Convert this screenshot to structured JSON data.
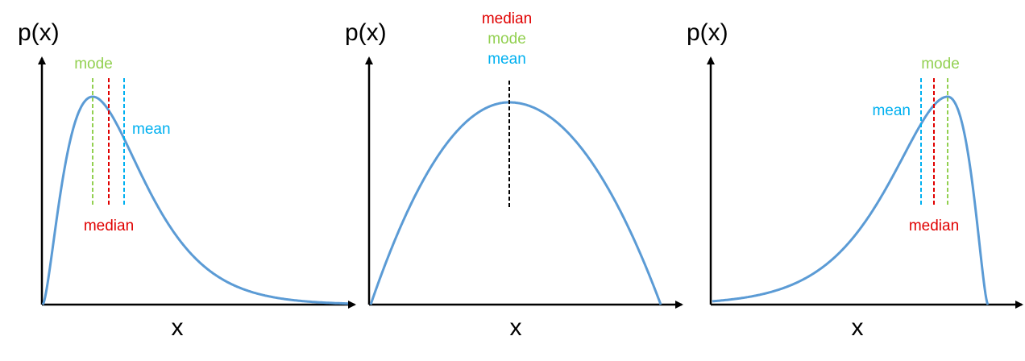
{
  "colors": {
    "curve": "#5b9bd5",
    "mode": "#92d050",
    "median": "#e00000",
    "mean": "#00b0f0",
    "axis": "#000000",
    "center_line": "#000000"
  },
  "panels": [
    {
      "ylabel": "p(x)",
      "xlabel": "x",
      "skew": "right",
      "labels": {
        "mode": "mode",
        "median": "median",
        "mean": "mean"
      }
    },
    {
      "ylabel": "p(x)",
      "xlabel": "x",
      "skew": "none",
      "labels": {
        "median": "median",
        "mode": "mode",
        "mean": "mean"
      }
    },
    {
      "ylabel": "p(x)",
      "xlabel": "x",
      "skew": "left",
      "labels": {
        "mode": "mode",
        "median": "median",
        "mean": "mean"
      }
    }
  ]
}
